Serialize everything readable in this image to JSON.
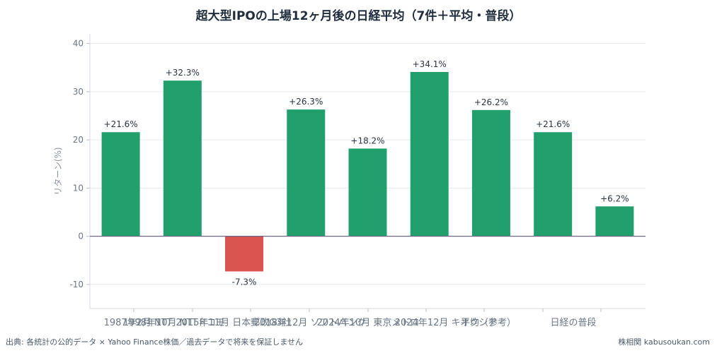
{
  "chart_data": {
    "type": "bar",
    "title": "超大型IPOの上場12ヶ月後の日経平均（7件＋平均・普段）",
    "ylabel": "リターン(%)",
    "xlabel": "",
    "ylim": [
      -15,
      42
    ],
    "yticks": [
      -10,
      0,
      10,
      20,
      30,
      40
    ],
    "grid": true,
    "categories": [
      "1987年2月 NTT",
      "1998年10月 NTTドコモ",
      "2015年11月 日本郵政G3社",
      "2018年12月 ソフトバンク",
      "2024年10月 東京メトロ",
      "2024年12月 キオクシア",
      "平均（参考）",
      "日経の普段",
      ""
    ],
    "values": [
      21.6,
      32.3,
      -7.3,
      26.3,
      18.2,
      34.1,
      26.2,
      21.6,
      6.2
    ],
    "data_labels": [
      "+21.6%",
      "+32.3%",
      "-7.3%",
      "+26.3%",
      "+18.2%",
      "+34.1%",
      "+26.2%",
      "+21.6%",
      "+6.2%"
    ],
    "colors": {
      "positive": "#21a06e",
      "negative": "#d9534f"
    }
  },
  "footer": {
    "source": "出典: 各統計の公的データ × Yahoo Finance株価／過去データで将来を保証しません",
    "site": "株相関 kabusoukan.com"
  }
}
